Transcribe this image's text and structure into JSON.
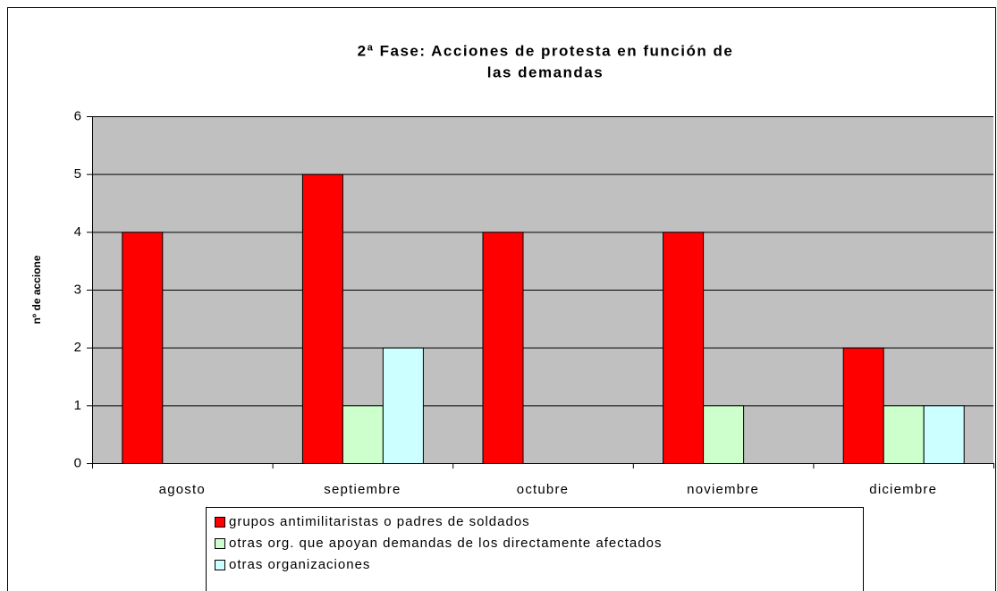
{
  "chart_data": {
    "type": "bar",
    "title": [
      "2ª Fase: Acciones de protesta en función de",
      "las demandas"
    ],
    "y_label": "nº de accione",
    "categories": [
      "agosto",
      "septiembre",
      "octubre",
      "noviembre",
      "diciembre"
    ],
    "series": [
      {
        "name": "grupos antimilitaristas o padres de soldados",
        "color": "#ff0000",
        "values": [
          4,
          5,
          4,
          4,
          2
        ]
      },
      {
        "name": "otras org. que apoyan demandas de los directamente afectados",
        "color": "#ccffcc",
        "values": [
          0,
          1,
          0,
          1,
          1
        ]
      },
      {
        "name": "otras organizaciones",
        "color": "#ccffff",
        "values": [
          0,
          2,
          0,
          0,
          1
        ]
      }
    ],
    "ylim": [
      0,
      6
    ],
    "yticks": [
      0,
      1,
      2,
      3,
      4,
      5,
      6
    ],
    "grid": true,
    "plot_background": "#c0c0c0",
    "legend": "bottom"
  }
}
